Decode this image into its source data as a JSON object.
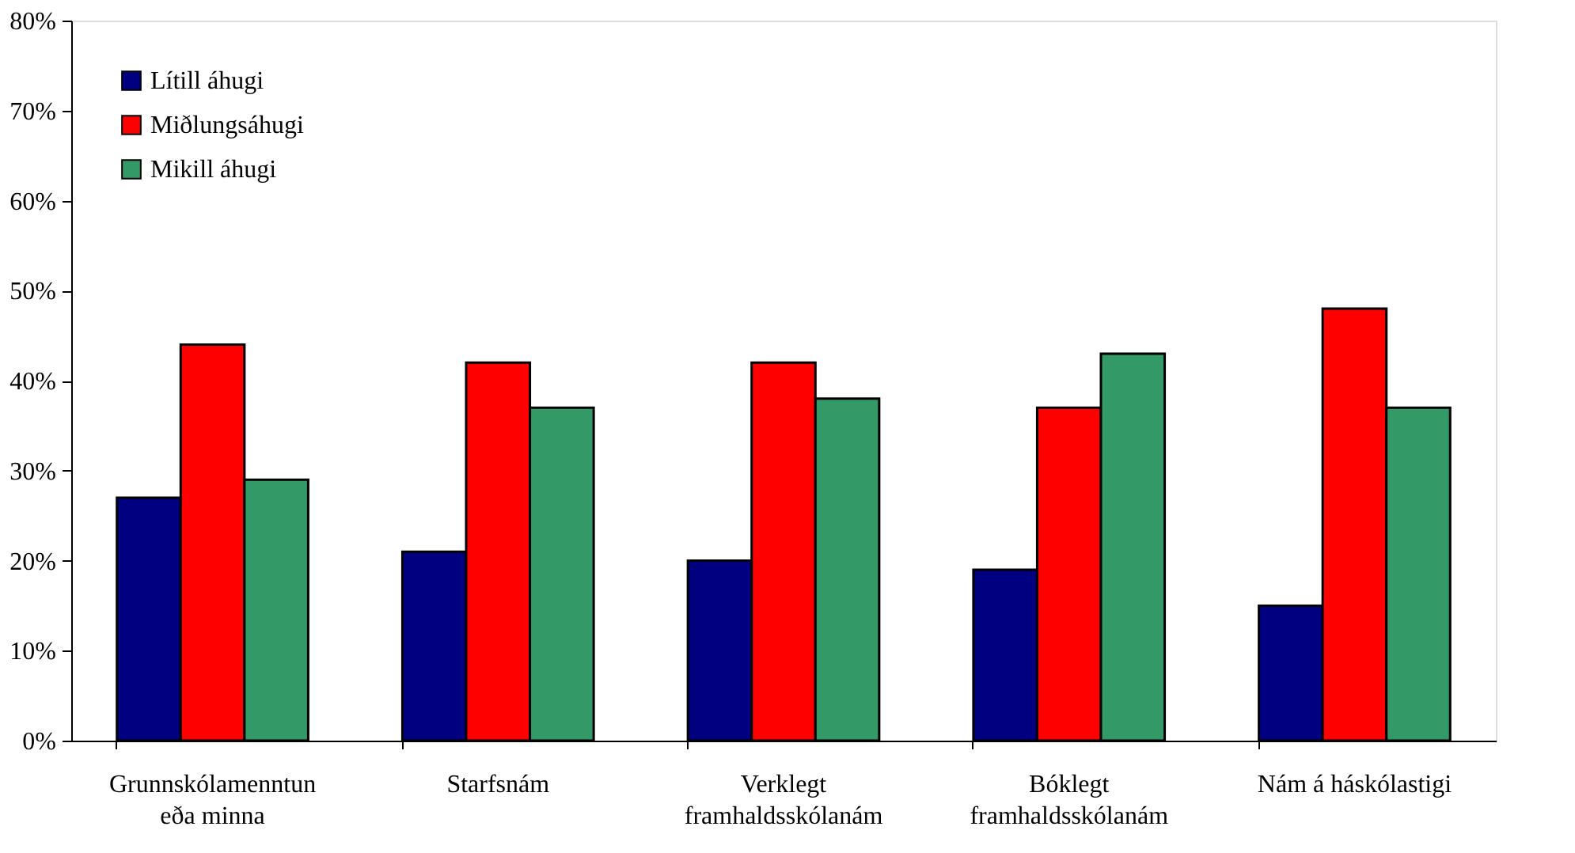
{
  "chart_data": {
    "type": "bar",
    "categories": [
      "Grunnskólamenntun\neða minna",
      "Starfsnám",
      "Verklegt\nframhaldsskólanám",
      "Bóklegt\nframhaldsskólanám",
      "Nám á háskólastigi"
    ],
    "series": [
      {
        "name": "Lítill áhugi",
        "color": "#000080",
        "values": [
          27,
          21,
          20,
          19,
          15
        ]
      },
      {
        "name": "Miðlungsáhugi",
        "color": "#ff0000",
        "values": [
          44,
          42,
          42,
          37,
          48
        ]
      },
      {
        "name": "Mikill áhugi",
        "color": "#339966",
        "values": [
          29,
          37,
          38,
          43,
          37
        ]
      }
    ],
    "ylim": [
      0,
      80
    ],
    "yticks": [
      {
        "value": 0,
        "label": "0%"
      },
      {
        "value": 10,
        "label": "10%"
      },
      {
        "value": 20,
        "label": "20%"
      },
      {
        "value": 30,
        "label": "30%"
      },
      {
        "value": 40,
        "label": "40%"
      },
      {
        "value": 50,
        "label": "50%"
      },
      {
        "value": 60,
        "label": "60%"
      },
      {
        "value": 70,
        "label": "70%"
      },
      {
        "value": 80,
        "label": "80%"
      }
    ],
    "grid": false,
    "legend": "top left"
  }
}
